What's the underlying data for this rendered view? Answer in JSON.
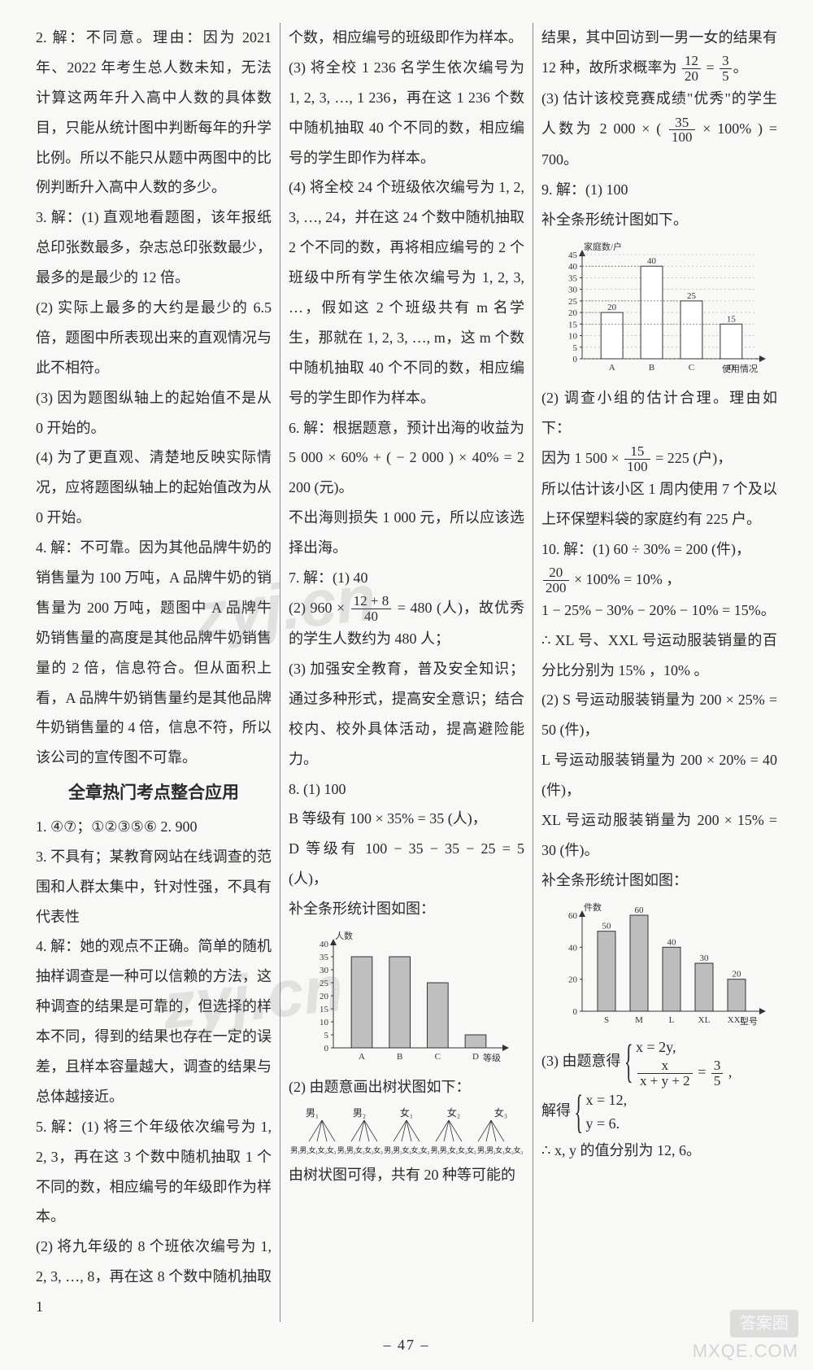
{
  "page_number": "– 47 –",
  "watermarks": {
    "wm1": "zyj.cn",
    "wm2": "zyj.cn",
    "corner": "MXQE.COM",
    "badge": "答案圈"
  },
  "col1": {
    "p2": "2. 解：不同意。理由：因为 2021 年、2022 年考生总人数未知，无法计算这两年升入高中人数的具体数目，只能从统计图中判断每年的升学比例。所以不能只从题中两图中的比例判断升入高中人数的多少。",
    "p3a": "3. 解：(1) 直观地看题图，该年报纸总印张数最多，杂志总印张数最少，最多的是最少的 12 倍。",
    "p3b": "(2) 实际上最多的大约是最少的 6.5 倍，题图中所表现出来的直观情况与此不相符。",
    "p3c": "(3) 因为题图纵轴上的起始值不是从 0 开始的。",
    "p3d": "(4) 为了更直观、清楚地反映实际情况，应将题图纵轴上的起始值改为从 0 开始。",
    "p4": "4. 解：不可靠。因为其他品牌牛奶的销售量为 100 万吨，A 品牌牛奶的销售量为 200 万吨，题图中 A 品牌牛奶销售量的高度是其他品牌牛奶销售量的 2 倍，信息符合。但从面积上看，A 品牌牛奶销售量约是其他品牌牛奶销售量的 4 倍，信息不符，所以该公司的宣传图不可靠。",
    "sec_title": "全章热门考点整合应用",
    "a1": "1. ④⑦；①②③⑤⑥   2. 900",
    "a3": "3. 不具有；某教育网站在线调查的范围和人群太集中，针对性强，不具有代表性",
    "a4": "4. 解：她的观点不正确。简单的随机抽样调查是一种可以信赖的方法，这种调查的结果是可靠的，但选择的样本不同，得到的结果也存在一定的误差，且样本容量越大，调查的结果与总体越接近。",
    "a5a": "5. 解：(1) 将三个年级依次编号为 1, 2, 3，再在这 3 个数中随机抽取 1 个不同的数，相应编号的年级即作为样本。",
    "a5b": "(2) 将九年级的 8 个班依次编号为 1, 2, 3, …, 8，再在这 8 个数中随机抽取 1"
  },
  "col2": {
    "p5c_top": "个数，相应编号的班级即作为样本。",
    "p5c": "(3) 将全校 1 236 名学生依次编号为 1, 2, 3, …, 1 236，再在这 1 236 个数中随机抽取 40 个不同的数，相应编号的学生即作为样本。",
    "p5d": "(4) 将全校 24 个班级依次编号为 1, 2, 3, …, 24，并在这 24 个数中随机抽取 2 个不同的数，再将相应编号的 2 个班级中所有学生依次编号为 1, 2, 3, …，假如这 2 个班级共有 m 名学生，那就在 1, 2, 3, …, m，这 m 个数中随机抽取 40 个不同的数，相应编号的学生即作为样本。",
    "p6a": "6. 解：根据题意，预计出海的收益为 5 000 × 60% + ( − 2 000 ) × 40% = 2 200 (元)。",
    "p6b": "不出海则损失 1 000 元，所以应该选择出海。",
    "p7a": "7. 解：(1) 40",
    "p7b_pre": "(2) 960 × ",
    "p7b_frac_t": "12 + 8",
    "p7b_frac_b": "40",
    "p7b_post": " = 480 (人)，故优秀的学生人数约为 480 人；",
    "p7c": "(3) 加强安全教育，普及安全知识；通过多种形式，提高安全意识；结合校内、校外具体活动，提高避险能力。",
    "p8a": "8. (1) 100",
    "p8b": "B 等级有 100 × 35% = 35 (人)，",
    "p8c": "D 等级有 100 − 35 − 35 − 25 = 5 (人)，",
    "p8d": "补全条形统计图如图：",
    "chart1": {
      "type": "bar",
      "ylabel": "人数",
      "xlabel": "等级",
      "categories": [
        "A",
        "B",
        "C",
        "D"
      ],
      "values": [
        35,
        35,
        25,
        5
      ],
      "ylim": [
        0,
        40
      ],
      "ytick_step": 5,
      "bar_color": "#bfbfbf",
      "axis_color": "#333333",
      "label_fontsize": 11
    },
    "p8e": "(2) 由题意画出树状图如下：",
    "tree": {
      "roots": [
        "男₁",
        "男₂",
        "女₁",
        "女₂",
        "女₃"
      ],
      "leaves": "男₁男₂女₁女₂女₃  男₁男₂女₁女₂女₃  男₁男₂女₁女₂女₃  男₁男₂女₁女₂女₃  男₁男₂女₁女₂女₃"
    },
    "p8f": "由树状图可得，共有 20 种等可能的"
  },
  "col3": {
    "p8g_pre": "结果，其中回访到一男一女的结果有 12 种，故所求概率为 ",
    "p8g_f1t": "12",
    "p8g_f1b": "20",
    "p8g_mid": " = ",
    "p8g_f2t": "3",
    "p8g_f2b": "5",
    "p8g_post": "。",
    "p8h_pre": "(3) 估计该校竞赛成绩\"优秀\"的学生人数为 2 000 × ( ",
    "p8h_f_t": "35",
    "p8h_f_b": "100",
    "p8h_post": " × 100% ) = 700。",
    "p9a": "9. 解：(1) 100",
    "p9b": "补全条形统计图如下。",
    "chart2": {
      "type": "bar",
      "ylabel": "家庭数/户",
      "xlabel": "使用情况",
      "categories": [
        "A",
        "B",
        "C",
        "D"
      ],
      "values": [
        20,
        40,
        25,
        15
      ],
      "value_labels": [
        "20",
        "40",
        "25",
        "15"
      ],
      "ylim": [
        0,
        45
      ],
      "ytick_step": 5,
      "bar_color": "#ffffff",
      "bar_border": "#333333",
      "axis_color": "#333333",
      "label_fontsize": 11
    },
    "p9c": "(2) 调查小组的估计合理。理由如下：",
    "p9d_pre": "因为 1 500 × ",
    "p9d_f_t": "15",
    "p9d_f_b": "100",
    "p9d_post": " = 225 (户)，",
    "p9e": "所以估计该小区 1 周内使用 7 个及以上环保塑料袋的家庭约有 225 户。",
    "p10a": "10. 解：(1) 60 ÷ 30% = 200 (件)，",
    "p10b_f_t": "20",
    "p10b_f_b": "200",
    "p10b_post": " × 100% = 10% ，",
    "p10c": "1 − 25% − 30% − 20% − 10% = 15%。",
    "p10d": "∴ XL 号、XXL 号运动服装销量的百分比分别为 15% ，10% 。",
    "p10e": "(2) S 号运动服装销量为 200 × 25% = 50 (件)，",
    "p10f": "L 号运动服装销量为 200 × 20% = 40 (件)，",
    "p10g": "XL 号运动服装销量为 200 × 15% = 30 (件)。",
    "p10h": "补全条形统计图如图：",
    "chart3": {
      "type": "bar",
      "ylabel": "件数",
      "xlabel": "型号",
      "categories": [
        "S",
        "M",
        "L",
        "XL",
        "XXL"
      ],
      "values": [
        50,
        60,
        40,
        30,
        20
      ],
      "value_labels": [
        "50",
        "60",
        "40",
        "30",
        "20"
      ],
      "ylim": [
        0,
        60
      ],
      "ytick_step": 20,
      "bar_color": "#bdbdbd",
      "axis_color": "#333333",
      "label_fontsize": 11
    },
    "p10i_pre": "(3) 由题意得 ",
    "p10i_l1": "x = 2y,",
    "p10i_l2_pre": "",
    "p10i_l2_ft": "x",
    "p10i_l2_fb": "x + y + 2",
    "p10i_l2_mid": " = ",
    "p10i_l2_f2t": "3",
    "p10i_l2_f2b": "5",
    "p10i_l2_post": " ,",
    "p10j_pre": "解得 ",
    "p10j_l1": "x = 12,",
    "p10j_l2": "y = 6.",
    "p10k": "∴ x, y 的值分别为 12, 6。"
  }
}
